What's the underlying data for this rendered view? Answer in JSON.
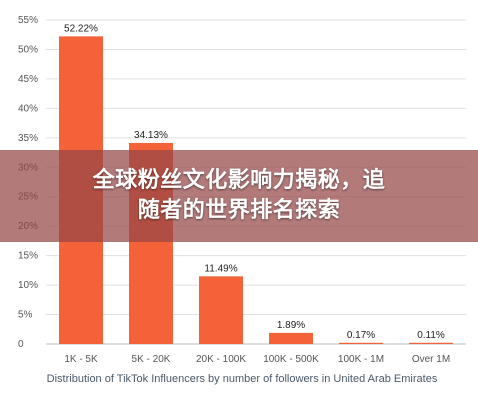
{
  "overlay": {
    "line1": "全球粉丝文化影响力揭秘，追",
    "line2": "随者的世界排名探索"
  },
  "chart_data": {
    "type": "bar",
    "categories": [
      "1K - 5K",
      "5K - 20K",
      "20K - 100K",
      "100K - 500K",
      "100K - 1M",
      "Over 1M"
    ],
    "values": [
      52.22,
      34.13,
      11.49,
      1.89,
      0.17,
      0.11
    ],
    "data_labels": [
      "52.22%",
      "34.13%",
      "11.49%",
      "1.89%",
      "0.17%",
      "0.11%"
    ],
    "xlabel": "Distribution of TikTok Influencers by number of followers in United Arab Emirates",
    "ylabel": "",
    "ylim": [
      0,
      55
    ],
    "yticks": [
      0,
      5,
      10,
      15,
      20,
      25,
      30,
      35,
      40,
      45,
      50,
      55
    ],
    "ytick_labels": [
      "0",
      "5%",
      "10%",
      "15%",
      "20%",
      "25%",
      "30%",
      "35%",
      "40%",
      "45%",
      "50%",
      "55%"
    ],
    "grid": true,
    "bar_color": "#f4623a",
    "grid_color": "#e0e0e0"
  }
}
